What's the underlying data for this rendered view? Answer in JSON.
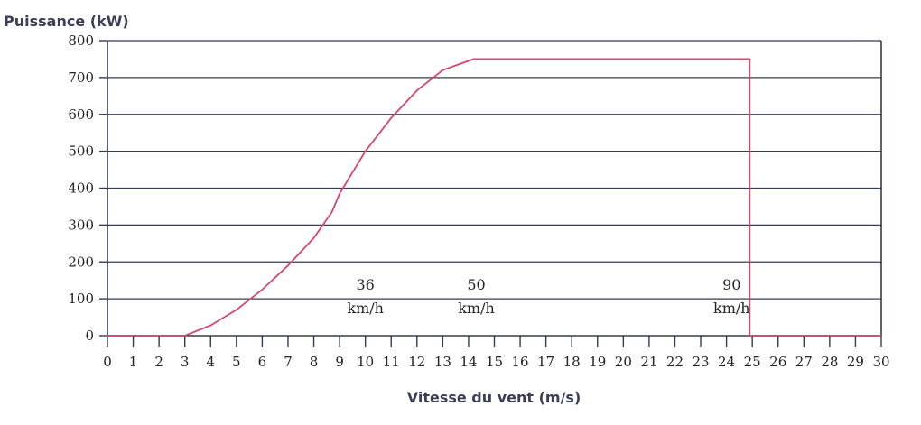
{
  "chart_data": {
    "type": "line",
    "ylabel": "Puissance (kW)",
    "xlabel": "Vitesse du vent (m/s)",
    "xlim": [
      0,
      30
    ],
    "ylim": [
      0,
      800
    ],
    "x_ticks": [
      0,
      1,
      2,
      3,
      4,
      5,
      6,
      7,
      8,
      9,
      10,
      11,
      12,
      13,
      14,
      15,
      16,
      17,
      18,
      19,
      20,
      21,
      22,
      23,
      24,
      25,
      26,
      27,
      28,
      29,
      30
    ],
    "y_ticks": [
      0,
      100,
      200,
      300,
      400,
      500,
      600,
      700,
      800
    ],
    "grid": "horizontal",
    "line_color": "#d6456f",
    "grid_color": "#333c55",
    "series": [
      {
        "x": [
          0,
          3,
          4,
          5,
          6,
          7,
          8,
          8.7,
          9,
          10,
          11,
          12,
          13,
          14.2,
          24.9,
          24.9,
          30
        ],
        "values": [
          0,
          0,
          28,
          70,
          125,
          190,
          265,
          335,
          385,
          500,
          590,
          665,
          720,
          750,
          750,
          0,
          0
        ]
      }
    ],
    "annotations": [
      {
        "x": 10,
        "y": 125,
        "line1": "36",
        "line2": "km/h"
      },
      {
        "x": 14.3,
        "y": 125,
        "line1": "50",
        "line2": "km/h"
      },
      {
        "x": 24.2,
        "y": 125,
        "line1": "90",
        "line2": "km/h"
      }
    ]
  }
}
